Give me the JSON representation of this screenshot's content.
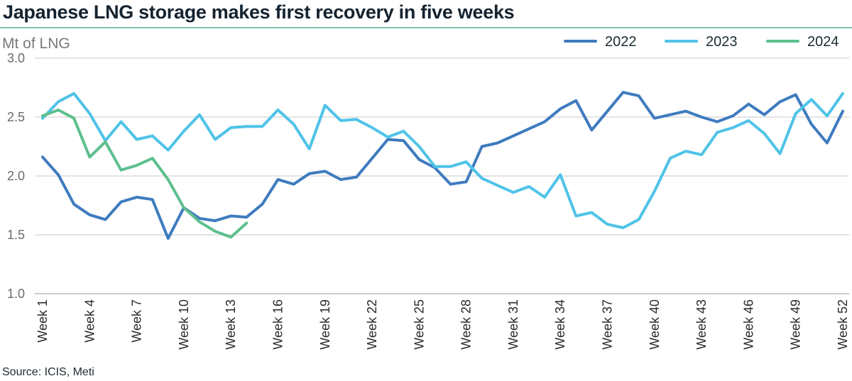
{
  "header": {
    "title": "Japanese LNG storage makes first recovery in five weeks"
  },
  "footer": {
    "source": "Source: ICIS, Meti"
  },
  "colors": {
    "2022": "#3f7bbf",
    "2023": "#4fc3e8",
    "2024": "#5dbf8e",
    "grid": "#c9c9c9",
    "rule": "#7fc6a4"
  },
  "chart_data": {
    "type": "line",
    "title": "Japanese LNG storage makes first recovery in five weeks",
    "ylabel": "Mt of LNG",
    "xlabel": "",
    "ylim": [
      1.0,
      3.0
    ],
    "yticks": [
      "3.0",
      "2.5",
      "2.0",
      "1.5",
      "1.0"
    ],
    "x_tick_labels": [
      "Week 1",
      "Week 4",
      "Week 7",
      "Week 10",
      "Week 13",
      "Week 16",
      "Week 19",
      "Week 22",
      "Week 25",
      "Week 28",
      "Week 31",
      "Week 34",
      "Week 37",
      "Week 40",
      "Week 43",
      "Week 46",
      "Week 49",
      "Week 52"
    ],
    "x_tick_weeks": [
      1,
      4,
      7,
      10,
      13,
      16,
      19,
      22,
      25,
      28,
      31,
      34,
      37,
      40,
      43,
      46,
      49,
      52
    ],
    "grid": "horizontal",
    "legend_position": "top-right",
    "series": [
      {
        "name": "2022",
        "color": "#3f7bbf",
        "values": [
          2.16,
          2.01,
          1.76,
          1.67,
          1.63,
          1.78,
          1.82,
          1.8,
          1.47,
          1.73,
          1.64,
          1.62,
          1.66,
          1.65,
          1.76,
          1.97,
          1.93,
          2.02,
          2.04,
          1.97,
          1.99,
          2.15,
          2.31,
          2.3,
          2.14,
          2.07,
          1.93,
          1.95,
          2.25,
          2.28,
          2.34,
          2.4,
          2.46,
          2.57,
          2.64,
          2.39,
          2.55,
          2.71,
          2.68,
          2.49,
          2.52,
          2.55,
          2.5,
          2.46,
          2.51,
          2.61,
          2.52,
          2.63,
          2.69,
          2.44,
          2.28,
          2.55
        ]
      },
      {
        "name": "2023",
        "color": "#4fc3e8",
        "values": [
          2.49,
          2.63,
          2.7,
          2.53,
          2.3,
          2.46,
          2.31,
          2.34,
          2.22,
          2.38,
          2.52,
          2.31,
          2.41,
          2.42,
          2.42,
          2.56,
          2.44,
          2.23,
          2.6,
          2.47,
          2.48,
          2.41,
          2.33,
          2.38,
          2.25,
          2.08,
          2.08,
          2.12,
          1.98,
          1.92,
          1.86,
          1.91,
          1.82,
          2.01,
          1.66,
          1.69,
          1.59,
          1.56,
          1.63,
          1.87,
          2.15,
          2.21,
          2.18,
          2.37,
          2.41,
          2.47,
          2.36,
          2.19,
          2.53,
          2.65,
          2.51,
          2.7
        ]
      },
      {
        "name": "2024",
        "color": "#5dbf8e",
        "values": [
          2.51,
          2.56,
          2.49,
          2.16,
          2.29,
          2.05,
          2.09,
          2.15,
          1.97,
          1.73,
          1.61,
          1.53,
          1.48,
          1.6
        ]
      }
    ]
  }
}
